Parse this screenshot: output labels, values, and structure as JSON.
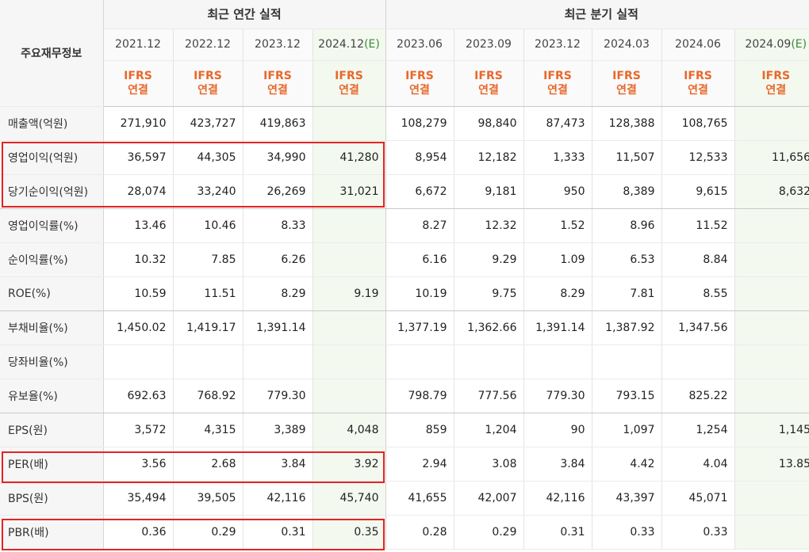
{
  "table": {
    "corner_label": "주요재무정보",
    "groups": {
      "annual": "최근 연간 실적",
      "quarterly": "최근 분기 실적"
    },
    "periods": [
      {
        "label": "2021.12",
        "est": ""
      },
      {
        "label": "2022.12",
        "est": ""
      },
      {
        "label": "2023.12",
        "est": ""
      },
      {
        "label": "2024.12",
        "est": "(E)"
      },
      {
        "label": "2023.06",
        "est": ""
      },
      {
        "label": "2023.09",
        "est": ""
      },
      {
        "label": "2023.12",
        "est": ""
      },
      {
        "label": "2024.03",
        "est": ""
      },
      {
        "label": "2024.06",
        "est": ""
      },
      {
        "label": "2024.09",
        "est": "(E)"
      }
    ],
    "ifrs_top": "IFRS",
    "ifrs_bottom": "연결",
    "rows": [
      {
        "label": "매출액(억원)",
        "values": [
          "271,910",
          "423,727",
          "419,863",
          "",
          "108,279",
          "98,840",
          "87,473",
          "128,388",
          "108,765",
          ""
        ]
      },
      {
        "label": "영업이익(억원)",
        "values": [
          "36,597",
          "44,305",
          "34,990",
          "41,280",
          "8,954",
          "12,182",
          "1,333",
          "11,507",
          "12,533",
          "11,656"
        ]
      },
      {
        "label": "당기순이익(억원)",
        "values": [
          "28,074",
          "33,240",
          "26,269",
          "31,021",
          "6,672",
          "9,181",
          "950",
          "8,389",
          "9,615",
          "8,632"
        ]
      },
      {
        "label": "영업이익률(%)",
        "values": [
          "13.46",
          "10.46",
          "8.33",
          "",
          "8.27",
          "12.32",
          "1.52",
          "8.96",
          "11.52",
          ""
        ]
      },
      {
        "label": "순이익률(%)",
        "values": [
          "10.32",
          "7.85",
          "6.26",
          "",
          "6.16",
          "9.29",
          "1.09",
          "6.53",
          "8.84",
          ""
        ]
      },
      {
        "label": "ROE(%)",
        "values": [
          "10.59",
          "11.51",
          "8.29",
          "9.19",
          "10.19",
          "9.75",
          "8.29",
          "7.81",
          "8.55",
          ""
        ]
      },
      {
        "label": "부채비율(%)",
        "values": [
          "1,450.02",
          "1,419.17",
          "1,391.14",
          "",
          "1,377.19",
          "1,362.66",
          "1,391.14",
          "1,387.92",
          "1,347.56",
          ""
        ]
      },
      {
        "label": "당좌비율(%)",
        "values": [
          "",
          "",
          "",
          "",
          "",
          "",
          "",
          "",
          "",
          ""
        ]
      },
      {
        "label": "유보율(%)",
        "values": [
          "692.63",
          "768.92",
          "779.30",
          "",
          "798.79",
          "777.56",
          "779.30",
          "793.15",
          "825.22",
          ""
        ]
      },
      {
        "label": "EPS(원)",
        "values": [
          "3,572",
          "4,315",
          "3,389",
          "4,048",
          "859",
          "1,204",
          "90",
          "1,097",
          "1,254",
          "1,145"
        ]
      },
      {
        "label": "PER(배)",
        "values": [
          "3.56",
          "2.68",
          "3.84",
          "3.92",
          "2.94",
          "3.08",
          "3.84",
          "4.42",
          "4.04",
          "13.85"
        ]
      },
      {
        "label": "BPS(원)",
        "values": [
          "35,494",
          "39,505",
          "42,116",
          "45,740",
          "41,655",
          "42,007",
          "42,116",
          "43,397",
          "45,071",
          ""
        ]
      },
      {
        "label": "PBR(배)",
        "values": [
          "0.36",
          "0.29",
          "0.31",
          "0.35",
          "0.28",
          "0.29",
          "0.31",
          "0.33",
          "0.33",
          ""
        ]
      }
    ]
  },
  "colors": {
    "highlight": "#e32424",
    "ifrs": "#e8682b",
    "estimate_bg": "#f3f9ef",
    "estimate_text": "#3a8a3a"
  }
}
